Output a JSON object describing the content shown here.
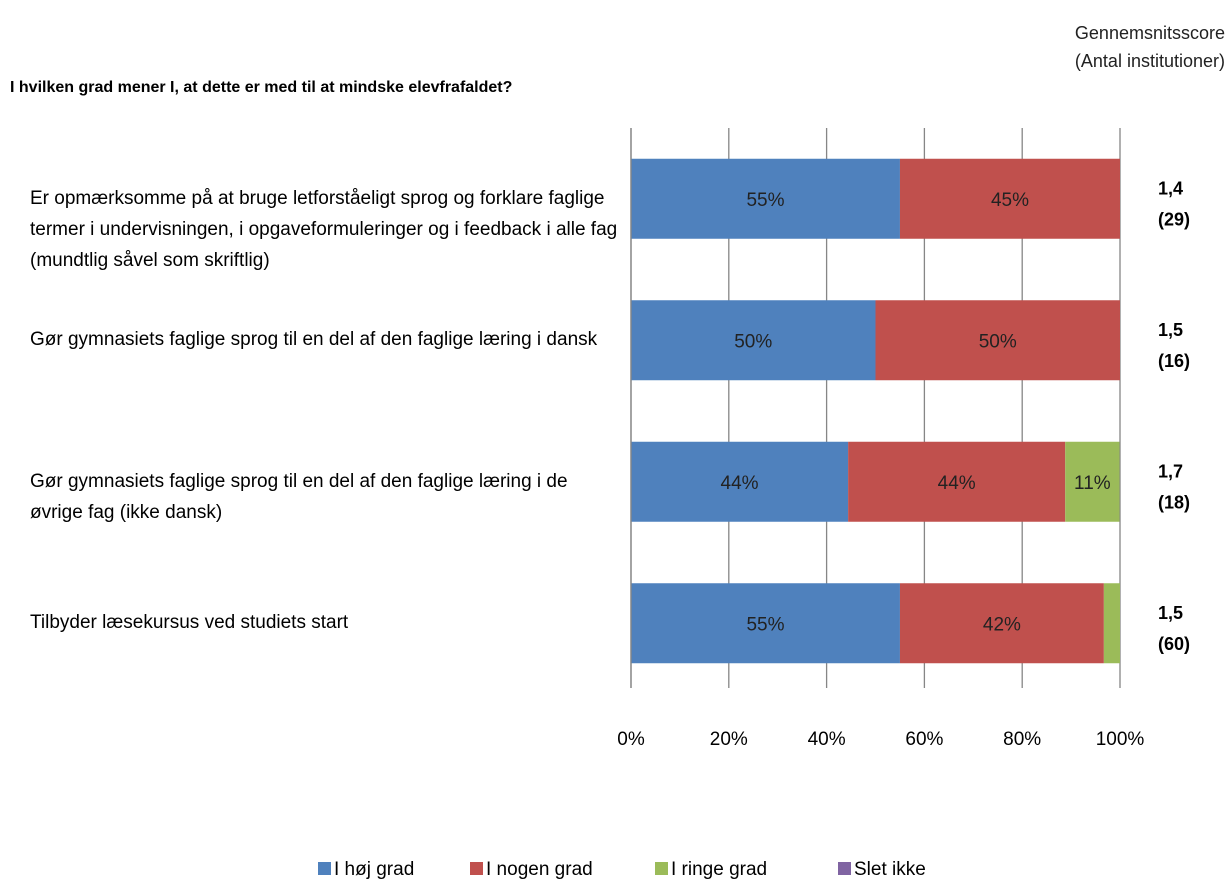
{
  "chart_data": {
    "type": "stacked_bar_horizontal",
    "title": "I hvilken grad mener I, at dette er med til at mindske elevfrafaldet?",
    "side_header": [
      "Gennemsnitsscore",
      "(Antal institutioner)"
    ],
    "categories": [
      "Er opmærksomme på at bruge letforståeligt sprog og forklare faglige termer i undervisningen, i opgaveformuleringer og i feedback i alle fag (mundtlig såvel som skriftlig)",
      "Gør gymnasiets faglige sprog til en del af den faglige læring i dansk",
      "Gør gymnasiets faglige sprog til en del af den faglige læring i de øvrige fag (ikke dansk)",
      "Tilbyder læsekursus ved studiets start"
    ],
    "series": [
      {
        "name": "I høj grad",
        "color": "#4f81bd",
        "values": [
          55,
          50,
          44.4,
          55
        ],
        "value_labels": [
          "55%",
          "50%",
          "44%",
          "55%"
        ]
      },
      {
        "name": "I nogen grad",
        "color": "#c0504d",
        "values": [
          45,
          50,
          44.4,
          41.7
        ],
        "value_labels": [
          "45%",
          "50%",
          "44%",
          "42%"
        ]
      },
      {
        "name": "I ringe grad",
        "color": "#9bbb59",
        "values": [
          0,
          0,
          11.1,
          3.3
        ],
        "value_labels": [
          null,
          null,
          "11%",
          null
        ]
      },
      {
        "name": "Slet ikke",
        "color": "#8064a2",
        "values": [
          0,
          0,
          0,
          0
        ],
        "value_labels": [
          null,
          null,
          null,
          null
        ]
      }
    ],
    "side_annotations": [
      {
        "score": "1,4",
        "count": "(29)"
      },
      {
        "score": "1,5",
        "count": "(16)"
      },
      {
        "score": "1,7",
        "count": "(18)"
      },
      {
        "score": "1,5",
        "count": "(60)"
      }
    ],
    "xlim": [
      0,
      100
    ],
    "xticks": [
      {
        "value": 0,
        "label": "0%"
      },
      {
        "value": 20,
        "label": "20%"
      },
      {
        "value": 40,
        "label": "40%"
      },
      {
        "value": 60,
        "label": "60%"
      },
      {
        "value": 80,
        "label": "80%"
      },
      {
        "value": 100,
        "label": "100%"
      }
    ],
    "grid": true,
    "legend": "bottom"
  }
}
